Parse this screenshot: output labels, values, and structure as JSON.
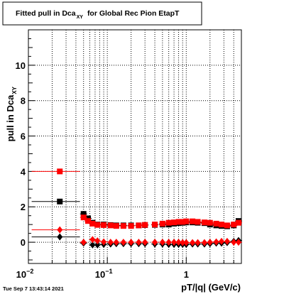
{
  "chart_data": {
    "type": "scatter",
    "title": "Fitted pull in Dca",
    "title_subscript": "XY",
    "title_suffix": "for Global Rec Pion EtapT",
    "xlabel": "pT/|q| (GeV/c)",
    "ylabel": "pull in Dca",
    "ylabel_subscript": "XY",
    "timestamp": "Tue Sep  7 13:43:14 2021",
    "x_scale": "log",
    "xlim": [
      0.01,
      5
    ],
    "ylim": [
      -1.2,
      12
    ],
    "grid": true,
    "x_tick_labels": [
      {
        "value": 0.01,
        "base": "10",
        "exp": "−2"
      },
      {
        "value": 0.1,
        "base": "10",
        "exp": "−1"
      },
      {
        "value": 1,
        "base": "1",
        "exp": ""
      }
    ],
    "y_ticks": [
      0,
      2,
      4,
      6,
      8,
      10
    ],
    "series": [
      {
        "color": "#000000",
        "marker": "square",
        "x": [
          0.025,
          0.05,
          0.057,
          0.065,
          0.075,
          0.09,
          0.11,
          0.13,
          0.16,
          0.2,
          0.25,
          0.3,
          0.4,
          0.5,
          0.6,
          0.7,
          0.8,
          0.9,
          1.0,
          1.2,
          1.4,
          1.7,
          2.0,
          2.4,
          2.8,
          3.3,
          4.0,
          4.6
        ],
        "y": [
          2.3,
          1.6,
          1.35,
          1.1,
          1.0,
          1.0,
          0.97,
          0.95,
          0.95,
          0.95,
          0.95,
          0.97,
          0.98,
          1.0,
          1.0,
          1.05,
          1.08,
          1.1,
          1.12,
          1.12,
          1.1,
          1.08,
          1.0,
          0.95,
          0.92,
          0.9,
          0.95,
          1.2
        ]
      },
      {
        "color": "#ff0000",
        "marker": "square",
        "x": [
          0.025,
          0.05,
          0.057,
          0.065,
          0.075,
          0.09,
          0.11,
          0.13,
          0.16,
          0.2,
          0.25,
          0.3,
          0.4,
          0.5,
          0.6,
          0.7,
          0.8,
          0.9,
          1.0,
          1.2,
          1.4,
          1.7,
          2.0,
          2.4,
          2.8,
          3.3,
          4.0,
          4.6
        ],
        "y": [
          4.0,
          1.4,
          1.2,
          1.05,
          0.98,
          0.97,
          0.95,
          0.92,
          0.92,
          0.92,
          0.95,
          0.98,
          1.0,
          1.05,
          1.1,
          1.12,
          1.15,
          1.15,
          1.18,
          1.18,
          1.15,
          1.12,
          1.1,
          1.05,
          1.0,
          0.95,
          1.0,
          1.1
        ]
      },
      {
        "color": "#000000",
        "marker": "diamond",
        "x": [
          0.025,
          0.05,
          0.065,
          0.075,
          0.09,
          0.11,
          0.13,
          0.16,
          0.2,
          0.25,
          0.3,
          0.4,
          0.5,
          0.6,
          0.7,
          0.8,
          0.9,
          1.0,
          1.2,
          1.4,
          1.7,
          2.0,
          2.4,
          2.8,
          3.3,
          4.0,
          4.6
        ],
        "y": [
          0.3,
          -0.05,
          -0.15,
          -0.15,
          -0.12,
          -0.1,
          -0.08,
          -0.08,
          -0.08,
          -0.08,
          -0.08,
          -0.1,
          -0.1,
          -0.12,
          -0.12,
          -0.12,
          -0.12,
          -0.12,
          -0.1,
          -0.1,
          -0.1,
          -0.08,
          -0.05,
          -0.05,
          -0.02,
          0.05,
          0.1
        ]
      },
      {
        "color": "#ff0000",
        "marker": "diamond",
        "x": [
          0.025,
          0.05,
          0.065,
          0.075,
          0.09,
          0.11,
          0.13,
          0.16,
          0.2,
          0.25,
          0.3,
          0.4,
          0.5,
          0.6,
          0.7,
          0.8,
          0.9,
          1.0,
          1.2,
          1.4,
          1.7,
          2.0,
          2.4,
          2.8,
          3.3,
          4.0,
          4.6
        ],
        "y": [
          0.7,
          0.0,
          0.15,
          0.08,
          0.02,
          0.0,
          0.0,
          0.0,
          0.0,
          0.0,
          0.0,
          0.0,
          0.0,
          0.0,
          0.0,
          0.0,
          -0.02,
          -0.02,
          -0.02,
          -0.02,
          -0.02,
          0.0,
          0.02,
          0.05,
          0.05,
          0.0,
          0.0
        ]
      }
    ]
  }
}
